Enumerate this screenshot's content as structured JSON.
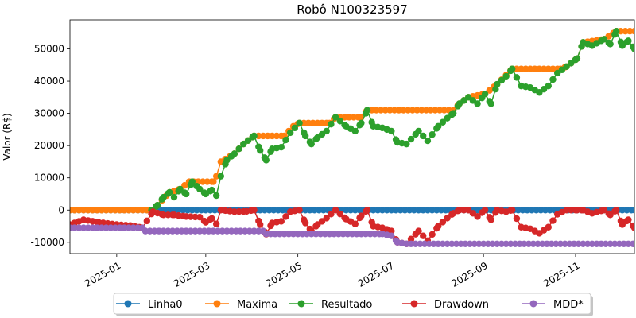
{
  "chart_data": {
    "type": "line",
    "title": "Robô N100323597",
    "ylabel": "Valor (R$)",
    "xlabel": "",
    "x_range": [
      "2024-12-01",
      "2025-12-10"
    ],
    "ylim": [
      -13500,
      59000
    ],
    "y_ticks": [
      -10000,
      0,
      10000,
      20000,
      30000,
      40000,
      50000
    ],
    "x_ticks": [
      "2025-01-01",
      "2025-03-01",
      "2025-05-01",
      "2025-07-01",
      "2025-09-01",
      "2025-11-01"
    ],
    "x_tick_labels": [
      "2025-01",
      "2025-03",
      "2025-05",
      "2025-07",
      "2025-09",
      "2025-11"
    ],
    "grid": false,
    "legend_position": "bottom-center",
    "series": [
      {
        "name": "Linha0",
        "color": "#1f77b4",
        "points": [
          [
            "2024-12-01",
            0
          ],
          [
            "2025-12-10",
            0
          ]
        ]
      },
      {
        "name": "Maxima",
        "color": "#ff7f0e",
        "points": [
          [
            "2024-12-01",
            0
          ],
          [
            "2025-01-25",
            0
          ],
          [
            "2025-01-28",
            1500
          ],
          [
            "2025-02-05",
            5500
          ],
          [
            "2025-02-12",
            6500
          ],
          [
            "2025-02-18",
            8800
          ],
          [
            "2025-03-06",
            8800
          ],
          [
            "2025-03-08",
            10500
          ],
          [
            "2025-03-11",
            15000
          ],
          [
            "2025-03-20",
            17500
          ],
          [
            "2025-03-26",
            20500
          ],
          [
            "2025-04-02",
            23000
          ],
          [
            "2025-04-22",
            23000
          ],
          [
            "2025-04-28",
            26000
          ],
          [
            "2025-05-02",
            27000
          ],
          [
            "2025-05-22",
            27000
          ],
          [
            "2025-05-26",
            28800
          ],
          [
            "2025-06-12",
            28800
          ],
          [
            "2025-06-16",
            31000
          ],
          [
            "2025-08-12",
            31000
          ],
          [
            "2025-08-16",
            33000
          ],
          [
            "2025-08-22",
            35000
          ],
          [
            "2025-09-02",
            36000
          ],
          [
            "2025-09-10",
            39000
          ],
          [
            "2025-09-20",
            43800
          ],
          [
            "2025-10-22",
            43800
          ],
          [
            "2025-10-26",
            44500
          ],
          [
            "2025-11-02",
            47000
          ],
          [
            "2025-11-06",
            52000
          ],
          [
            "2025-11-20",
            53000
          ],
          [
            "2025-11-28",
            55500
          ],
          [
            "2025-12-10",
            55500
          ]
        ]
      },
      {
        "name": "Resultado",
        "color": "#2ca02c",
        "points": [
          [
            "2025-01-24",
            0
          ],
          [
            "2025-01-28",
            1500
          ],
          [
            "2025-02-01",
            4000
          ],
          [
            "2025-02-05",
            5500
          ],
          [
            "2025-02-08",
            4000
          ],
          [
            "2025-02-12",
            6500
          ],
          [
            "2025-02-16",
            5000
          ],
          [
            "2025-02-20",
            8800
          ],
          [
            "2025-02-25",
            6500
          ],
          [
            "2025-03-01",
            5000
          ],
          [
            "2025-03-05",
            6200
          ],
          [
            "2025-03-08",
            4500
          ],
          [
            "2025-03-11",
            10500
          ],
          [
            "2025-03-15",
            15500
          ],
          [
            "2025-03-20",
            17500
          ],
          [
            "2025-03-26",
            20500
          ],
          [
            "2025-04-02",
            23000
          ],
          [
            "2025-04-06",
            18500
          ],
          [
            "2025-04-10",
            15500
          ],
          [
            "2025-04-14",
            19000
          ],
          [
            "2025-04-20",
            19500
          ],
          [
            "2025-04-26",
            24000
          ],
          [
            "2025-05-02",
            27000
          ],
          [
            "2025-05-06",
            23000
          ],
          [
            "2025-05-10",
            20500
          ],
          [
            "2025-05-14",
            22500
          ],
          [
            "2025-05-20",
            24500
          ],
          [
            "2025-05-26",
            28800
          ],
          [
            "2025-06-02",
            26000
          ],
          [
            "2025-06-08",
            24500
          ],
          [
            "2025-06-12",
            27000
          ],
          [
            "2025-06-16",
            31000
          ],
          [
            "2025-06-20",
            26000
          ],
          [
            "2025-06-26",
            25500
          ],
          [
            "2025-07-02",
            24500
          ],
          [
            "2025-07-06",
            21000
          ],
          [
            "2025-07-12",
            20500
          ],
          [
            "2025-07-20",
            24500
          ],
          [
            "2025-07-26",
            21500
          ],
          [
            "2025-08-02",
            26000
          ],
          [
            "2025-08-08",
            28500
          ],
          [
            "2025-08-12",
            30000
          ],
          [
            "2025-08-16",
            33000
          ],
          [
            "2025-08-22",
            35000
          ],
          [
            "2025-08-28",
            33000
          ],
          [
            "2025-09-02",
            36000
          ],
          [
            "2025-09-06",
            33000
          ],
          [
            "2025-09-10",
            39000
          ],
          [
            "2025-09-16",
            41500
          ],
          [
            "2025-09-20",
            43800
          ],
          [
            "2025-09-26",
            38500
          ],
          [
            "2025-10-02",
            38000
          ],
          [
            "2025-10-08",
            36500
          ],
          [
            "2025-10-14",
            38500
          ],
          [
            "2025-10-20",
            42500
          ],
          [
            "2025-10-26",
            44500
          ],
          [
            "2025-11-02",
            47000
          ],
          [
            "2025-11-06",
            52000
          ],
          [
            "2025-11-12",
            51000
          ],
          [
            "2025-11-20",
            53000
          ],
          [
            "2025-11-24",
            51500
          ],
          [
            "2025-11-28",
            55500
          ],
          [
            "2025-12-02",
            51000
          ],
          [
            "2025-12-06",
            52500
          ],
          [
            "2025-12-10",
            50000
          ]
        ]
      },
      {
        "name": "Drawdown",
        "color": "#d62728",
        "points": [
          [
            "2024-12-01",
            -4500
          ],
          [
            "2024-12-10",
            -3000
          ],
          [
            "2024-12-20",
            -3800
          ],
          [
            "2025-01-01",
            -4500
          ],
          [
            "2025-01-10",
            -4800
          ],
          [
            "2025-01-18",
            -5500
          ],
          [
            "2025-01-25",
            -500
          ],
          [
            "2025-02-01",
            -1500
          ],
          [
            "2025-02-08",
            -1500
          ],
          [
            "2025-02-16",
            -2000
          ],
          [
            "2025-02-25",
            -2200
          ],
          [
            "2025-03-01",
            -3800
          ],
          [
            "2025-03-05",
            -2600
          ],
          [
            "2025-03-08",
            -4300
          ],
          [
            "2025-03-11",
            0
          ],
          [
            "2025-03-20",
            -500
          ],
          [
            "2025-03-28",
            -400
          ],
          [
            "2025-04-02",
            0
          ],
          [
            "2025-04-06",
            -4500
          ],
          [
            "2025-04-10",
            -7500
          ],
          [
            "2025-04-14",
            -4000
          ],
          [
            "2025-04-20",
            -3500
          ],
          [
            "2025-04-26",
            -500
          ],
          [
            "2025-05-02",
            0
          ],
          [
            "2025-05-06",
            -4000
          ],
          [
            "2025-05-10",
            -6500
          ],
          [
            "2025-05-14",
            -4500
          ],
          [
            "2025-05-20",
            -2500
          ],
          [
            "2025-05-26",
            0
          ],
          [
            "2025-06-02",
            -2800
          ],
          [
            "2025-06-08",
            -4300
          ],
          [
            "2025-06-12",
            -1800
          ],
          [
            "2025-06-16",
            0
          ],
          [
            "2025-06-20",
            -5000
          ],
          [
            "2025-06-26",
            -5500
          ],
          [
            "2025-07-02",
            -6500
          ],
          [
            "2025-07-06",
            -10000
          ],
          [
            "2025-07-12",
            -10500
          ],
          [
            "2025-07-20",
            -6500
          ],
          [
            "2025-07-26",
            -9500
          ],
          [
            "2025-08-02",
            -5000
          ],
          [
            "2025-08-08",
            -2500
          ],
          [
            "2025-08-12",
            -1000
          ],
          [
            "2025-08-16",
            0
          ],
          [
            "2025-08-22",
            0
          ],
          [
            "2025-08-28",
            -2000
          ],
          [
            "2025-09-02",
            0
          ],
          [
            "2025-09-06",
            -3000
          ],
          [
            "2025-09-10",
            0
          ],
          [
            "2025-09-16",
            -500
          ],
          [
            "2025-09-20",
            0
          ],
          [
            "2025-09-26",
            -5300
          ],
          [
            "2025-10-02",
            -5800
          ],
          [
            "2025-10-08",
            -7200
          ],
          [
            "2025-10-14",
            -5300
          ],
          [
            "2025-10-20",
            -1300
          ],
          [
            "2025-10-26",
            0
          ],
          [
            "2025-11-02",
            0
          ],
          [
            "2025-11-06",
            0
          ],
          [
            "2025-11-12",
            -1000
          ],
          [
            "2025-11-20",
            0
          ],
          [
            "2025-11-24",
            -1500
          ],
          [
            "2025-11-28",
            0
          ],
          [
            "2025-12-02",
            -4500
          ],
          [
            "2025-12-06",
            -3000
          ],
          [
            "2025-12-10",
            -5500
          ]
        ]
      },
      {
        "name": "MDD*",
        "color": "#9467bd",
        "points": [
          [
            "2024-12-01",
            -5500
          ],
          [
            "2025-01-18",
            -5500
          ],
          [
            "2025-01-20",
            -6500
          ],
          [
            "2025-04-08",
            -6500
          ],
          [
            "2025-04-10",
            -7400
          ],
          [
            "2025-06-26",
            -7400
          ],
          [
            "2025-07-02",
            -8000
          ],
          [
            "2025-07-06",
            -10000
          ],
          [
            "2025-07-12",
            -10500
          ],
          [
            "2025-12-10",
            -10500
          ]
        ]
      }
    ]
  }
}
